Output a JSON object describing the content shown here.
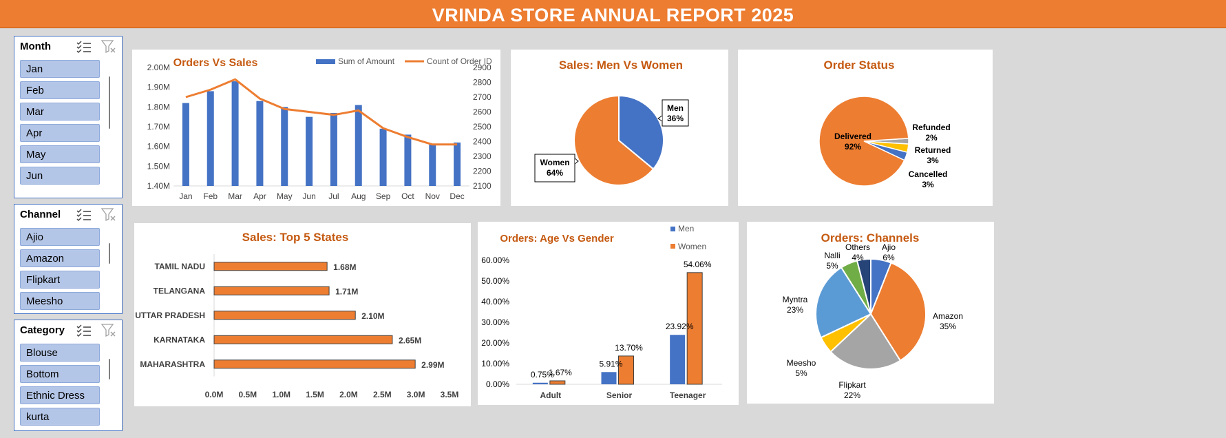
{
  "report_title": "VRINDA STORE ANNUAL REPORT 2025",
  "colors": {
    "orange": "#ed7d31",
    "blue": "#4472c4",
    "title": "#c55a11",
    "gray": "#a5a5a5",
    "yellow": "#ffc000",
    "lightblue": "#5b9bd5",
    "green": "#70ad47",
    "darkblue": "#264478"
  },
  "slicers": {
    "month": {
      "title": "Month",
      "items": [
        "Jan",
        "Feb",
        "Mar",
        "Apr",
        "May",
        "Jun"
      ]
    },
    "channel": {
      "title": "Channel",
      "items": [
        "Ajio",
        "Amazon",
        "Flipkart",
        "Meesho"
      ]
    },
    "category": {
      "title": "Category",
      "items": [
        "Blouse",
        "Bottom",
        "Ethnic Dress",
        "kurta"
      ]
    }
  },
  "chart_data": [
    {
      "id": "orders_vs_sales",
      "type": "bar+line",
      "title": "Orders Vs Sales",
      "categories": [
        "Jan",
        "Feb",
        "Mar",
        "Apr",
        "May",
        "Jun",
        "Jul",
        "Aug",
        "Sep",
        "Oct",
        "Nov",
        "Dec"
      ],
      "series": [
        {
          "name": "Sum of Amount",
          "type": "bar",
          "axis": "left",
          "values": [
            1.82,
            1.88,
            1.93,
            1.83,
            1.8,
            1.75,
            1.77,
            1.81,
            1.69,
            1.66,
            1.61,
            1.62
          ]
        },
        {
          "name": "Count of Order ID",
          "type": "line",
          "axis": "right",
          "values": [
            2700,
            2750,
            2820,
            2690,
            2620,
            2600,
            2580,
            2610,
            2490,
            2430,
            2380,
            2380
          ]
        }
      ],
      "y_left": {
        "min": 1.4,
        "max": 2.0,
        "ticks": [
          "1.40M",
          "1.50M",
          "1.60M",
          "1.70M",
          "1.80M",
          "1.90M",
          "2.00M"
        ]
      },
      "y_right": {
        "min": 2100,
        "max": 2900,
        "ticks": [
          "2100",
          "2200",
          "2300",
          "2400",
          "2500",
          "2600",
          "2700",
          "2800",
          "2900"
        ]
      },
      "legend_position": "top-right"
    },
    {
      "id": "sales_men_women",
      "type": "pie",
      "title": "Sales: Men Vs Women",
      "slices": [
        {
          "name": "Men",
          "value": 36,
          "label": "36%"
        },
        {
          "name": "Women",
          "value": 64,
          "label": "64%"
        }
      ]
    },
    {
      "id": "order_status",
      "type": "pie",
      "title": "Order Status",
      "slices": [
        {
          "name": "Delivered",
          "value": 92,
          "label": "92%"
        },
        {
          "name": "Refunded",
          "value": 2,
          "label": "2%"
        },
        {
          "name": "Returned",
          "value": 3,
          "label": "3%"
        },
        {
          "name": "Cancelled",
          "value": 3,
          "label": "3%"
        }
      ]
    },
    {
      "id": "top_states",
      "type": "bar",
      "orientation": "horizontal",
      "title": "Sales: Top 5 States",
      "categories": [
        "TAMIL NADU",
        "TELANGANA",
        "UTTAR PRADESH",
        "KARNATAKA",
        "MAHARASHTRA"
      ],
      "values": [
        1.68,
        1.71,
        2.1,
        2.65,
        2.99
      ],
      "data_labels": [
        "1.68M",
        "1.71M",
        "2.10M",
        "2.65M",
        "2.99M"
      ],
      "x_axis": {
        "min": 0,
        "max": 3.5,
        "ticks": [
          "0.0M",
          "0.5M",
          "1.0M",
          "1.5M",
          "2.0M",
          "2.5M",
          "3.0M",
          "3.5M"
        ]
      }
    },
    {
      "id": "age_vs_gender",
      "type": "bar",
      "title": "Orders: Age Vs Gender",
      "categories": [
        "Adult",
        "Senior",
        "Teenager"
      ],
      "series": [
        {
          "name": "Men",
          "values": [
            0.75,
            5.91,
            23.92
          ],
          "labels": [
            "0.75%",
            "5.91%",
            "23.92%"
          ]
        },
        {
          "name": "Women",
          "values": [
            1.67,
            13.7,
            54.06
          ],
          "labels": [
            "1.67%",
            "13.70%",
            "54.06%"
          ]
        }
      ],
      "y_axis": {
        "min": 0,
        "max": 60,
        "ticks": [
          "0.00%",
          "10.00%",
          "20.00%",
          "30.00%",
          "40.00%",
          "50.00%",
          "60.00%"
        ]
      },
      "legend_position": "top-right"
    },
    {
      "id": "channels",
      "type": "pie",
      "title": "Orders: Channels",
      "slices": [
        {
          "name": "Ajio",
          "value": 6,
          "label": "6%"
        },
        {
          "name": "Amazon",
          "value": 35,
          "label": "35%"
        },
        {
          "name": "Flipkart",
          "value": 22,
          "label": "22%"
        },
        {
          "name": "Meesho",
          "value": 5,
          "label": "5%"
        },
        {
          "name": "Myntra",
          "value": 23,
          "label": "23%"
        },
        {
          "name": "Nalli",
          "value": 5,
          "label": "5%"
        },
        {
          "name": "Others",
          "value": 4,
          "label": "4%"
        }
      ]
    }
  ]
}
